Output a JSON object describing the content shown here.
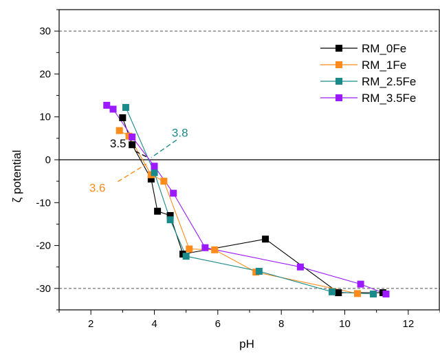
{
  "chart_data": {
    "type": "line",
    "xlabel": "pH",
    "ylabel": "ζ potential",
    "xlim": [
      1,
      13
    ],
    "ylim": [
      -35,
      35
    ],
    "x_ticks": [
      2,
      4,
      6,
      8,
      10,
      12
    ],
    "y_ticks": [
      -30,
      -20,
      -10,
      0,
      10,
      20,
      30
    ],
    "grid": false,
    "legend_position": "top-right",
    "reference_lines": [
      {
        "y": 30,
        "style": "dashed",
        "color": "#555555"
      },
      {
        "y": 0,
        "style": "solid",
        "color": "#000000"
      },
      {
        "y": -30,
        "style": "dashed",
        "color": "#555555"
      }
    ],
    "series": [
      {
        "name": "RM_0Fe",
        "color": "#000000",
        "x": [
          3.0,
          3.3,
          3.9,
          4.1,
          4.5,
          4.9,
          7.5,
          9.8,
          11.2
        ],
        "y": [
          9.8,
          3.5,
          -4.5,
          -12.0,
          -13.0,
          -22.0,
          -18.5,
          -31.0,
          -31.0
        ]
      },
      {
        "name": "RM_1Fe",
        "color": "#ff8c1a",
        "x": [
          2.9,
          3.2,
          3.9,
          4.3,
          5.1,
          5.9,
          7.2,
          10.4
        ],
        "y": [
          6.8,
          5.5,
          -3.5,
          -5.0,
          -20.8,
          -21.0,
          -26.2,
          -31.2
        ]
      },
      {
        "name": "RM_2.5Fe",
        "color": "#1a8a8a",
        "x": [
          3.1,
          4.0,
          4.5,
          5.0,
          7.3,
          9.6,
          10.9
        ],
        "y": [
          12.2,
          -3.0,
          -14.0,
          -22.5,
          -26.0,
          -30.8,
          -31.3
        ]
      },
      {
        "name": "RM_3.5Fe",
        "color": "#9b1aff",
        "x": [
          2.5,
          2.7,
          3.3,
          4.0,
          4.6,
          5.6,
          8.6,
          10.5,
          11.3
        ],
        "y": [
          12.7,
          11.8,
          5.3,
          -1.5,
          -7.8,
          -20.5,
          -25.0,
          -29.0,
          -31.3
        ]
      }
    ],
    "annotations": [
      {
        "text": "3.5",
        "x": 2.6,
        "y": 2.9,
        "color": "#000000",
        "leader": {
          "x1": 3.4,
          "y1": 2.0,
          "x2": 3.8,
          "y2": 0.5
        }
      },
      {
        "text": "3.6",
        "x": 1.95,
        "y": -7.5,
        "color": "#ff8c1a",
        "leader": {
          "x1": 2.85,
          "y1": -5.1,
          "x2": 3.75,
          "y2": -1.0
        }
      },
      {
        "text": "3.8",
        "x": 4.55,
        "y": 5.4,
        "color": "#1a8a8a",
        "leader": {
          "x1": 4.7,
          "y1": 4.6,
          "x2": 3.9,
          "y2": 0.5
        }
      }
    ]
  }
}
